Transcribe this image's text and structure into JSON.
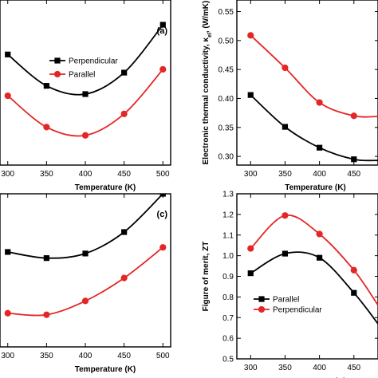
{
  "chart_data": [
    {
      "panel_label": "(a)",
      "type": "line",
      "xlabel": "Temperature (K)",
      "ylabel": "",
      "xticks": [
        300,
        350,
        400,
        450,
        500
      ],
      "xlim": [
        290,
        510
      ],
      "ylim": [
        0,
        1
      ],
      "x": [
        300,
        350,
        400,
        450,
        500
      ],
      "series": [
        {
          "name": "Perpendicular",
          "marker": "square",
          "color": "#000000",
          "values": [
            0.67,
            0.48,
            0.43,
            0.56,
            0.85
          ]
        },
        {
          "name": "Parallel",
          "marker": "circle",
          "color": "#e32626",
          "values": [
            0.42,
            0.23,
            0.18,
            0.31,
            0.58
          ]
        }
      ],
      "legend": "center-left"
    },
    {
      "panel_label": "",
      "type": "line",
      "xlabel": "Temperature (K)",
      "ylabel": "Electronic thermal conductivity, κel, (W/mK)",
      "ylabel_main": "Electronic thermal conductivity, κ",
      "ylabel_sub": "el",
      "ylabel_tail": ", (W/mK)",
      "xticks": [
        300,
        350,
        400,
        450
      ],
      "yticks": [
        0.3,
        0.35,
        0.4,
        0.45,
        0.5,
        0.55
      ],
      "ytick_labels": [
        "0.30",
        "0.35",
        "0.40",
        "0.45",
        "0.50",
        "0.55"
      ],
      "xlim": [
        280,
        485
      ],
      "ylim": [
        0.285,
        0.57
      ],
      "x": [
        300,
        350,
        400,
        450,
        485
      ],
      "series": [
        {
          "name": "",
          "marker": "circle",
          "color": "#e32626",
          "values": [
            0.509,
            0.453,
            0.393,
            0.37,
            0.369
          ]
        },
        {
          "name": "",
          "marker": "square",
          "color": "#000000",
          "values": [
            0.406,
            0.351,
            0.315,
            0.295,
            0.293
          ]
        }
      ],
      "legend": "none"
    },
    {
      "panel_label": "(c)",
      "type": "line",
      "xlabel": "Temperature (K)",
      "ylabel": "",
      "xticks": [
        300,
        350,
        400,
        450,
        500
      ],
      "xlim": [
        290,
        510
      ],
      "ylim": [
        0,
        1
      ],
      "x": [
        300,
        350,
        400,
        450,
        500
      ],
      "series": [
        {
          "name": "",
          "marker": "square",
          "color": "#000000",
          "values": [
            0.62,
            0.58,
            0.61,
            0.75,
            1.0
          ]
        },
        {
          "name": "",
          "marker": "circle",
          "color": "#e32626",
          "values": [
            0.22,
            0.21,
            0.3,
            0.45,
            0.65
          ]
        }
      ],
      "legend": "none"
    },
    {
      "panel_label": "",
      "type": "line",
      "xlabel": "Temperature (K)",
      "ylabel": "Figure of merit, ZT",
      "xticks": [
        300,
        350,
        400,
        450
      ],
      "yticks": [
        0.5,
        0.6,
        0.7,
        0.8,
        0.9,
        1.0,
        1.1,
        1.2,
        1.3
      ],
      "ytick_labels": [
        "0.5",
        "0.6",
        "0.7",
        "0.8",
        "0.9",
        "1.0",
        "1.1",
        "1.2",
        "1.3"
      ],
      "xlim": [
        280,
        485
      ],
      "ylim": [
        0.5,
        1.3
      ],
      "x": [
        300,
        350,
        400,
        450,
        485
      ],
      "series": [
        {
          "name": "Parallel",
          "marker": "square",
          "color": "#000000",
          "values": [
            0.915,
            1.01,
            0.99,
            0.82,
            0.67
          ]
        },
        {
          "name": "Perpendicular",
          "marker": "circle",
          "color": "#e32626",
          "values": [
            1.035,
            1.195,
            1.105,
            0.93,
            0.76
          ]
        }
      ],
      "legend": "bottom-left"
    }
  ]
}
